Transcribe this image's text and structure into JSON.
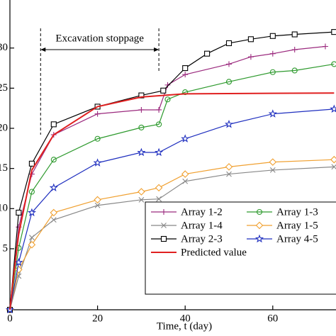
{
  "chart_data": {
    "type": "line",
    "annotation": "Excavation stoppage",
    "stoppage_days": [
      7,
      34
    ],
    "xlabel": "Time, t (day)",
    "xlim": [
      0,
      74.4
    ],
    "xticks": [
      0,
      20,
      40,
      60
    ],
    "ylim": [
      -2.6,
      35.1
    ],
    "yticks": [
      5,
      10,
      15,
      20,
      25,
      30
    ],
    "legend": "lower right",
    "series": [
      {
        "name": "Array 1-2",
        "color": "#9b2a7e",
        "marker": "plus",
        "x": [
          0,
          2,
          5,
          10,
          20,
          30,
          34,
          36,
          40,
          50,
          55,
          60,
          65,
          72
        ],
        "values": [
          -2.6,
          7.7,
          14.3,
          19.2,
          21.8,
          22.3,
          22.3,
          25.4,
          26.7,
          28.0,
          28.9,
          29.3,
          29.8,
          30.2
        ]
      },
      {
        "name": "Array 1-3",
        "color": "#2e9a2e",
        "marker": "circle",
        "x": [
          0,
          2,
          5,
          10,
          20,
          30,
          34,
          36,
          40,
          50,
          60,
          65,
          74
        ],
        "values": [
          -2.6,
          5.1,
          12.1,
          16.1,
          18.7,
          20.1,
          20.5,
          23.6,
          24.5,
          25.8,
          27.0,
          27.2,
          28.0
        ]
      },
      {
        "name": "Array 1-4",
        "color": "#888888",
        "marker": "x",
        "x": [
          0,
          2,
          5,
          10,
          20,
          30,
          34,
          40,
          50,
          60,
          74
        ],
        "values": [
          -2.6,
          1.6,
          6.4,
          8.6,
          10.4,
          11.1,
          11.2,
          13.4,
          14.3,
          14.8,
          15.2
        ]
      },
      {
        "name": "Array 1-5",
        "color": "#f0a030",
        "marker": "diamond",
        "x": [
          0,
          2,
          5,
          10,
          20,
          30,
          34,
          40,
          50,
          60,
          74
        ],
        "values": [
          -2.6,
          2.4,
          5.5,
          9.5,
          11.1,
          12.1,
          12.6,
          14.3,
          15.2,
          15.8,
          16.1
        ]
      },
      {
        "name": "Array 2-3",
        "color": "#000000",
        "marker": "square",
        "x": [
          0,
          2,
          5,
          10,
          20,
          30,
          35,
          40,
          45,
          50,
          55,
          60,
          65,
          74
        ],
        "values": [
          -2.6,
          9.5,
          15.6,
          20.5,
          22.7,
          24.1,
          24.7,
          27.5,
          29.3,
          30.6,
          31.1,
          31.5,
          31.7,
          32.0
        ]
      },
      {
        "name": "Array 4-5",
        "color": "#1f2fbf",
        "marker": "star",
        "x": [
          0,
          2,
          5,
          10,
          20,
          30,
          34,
          40,
          50,
          60,
          74
        ],
        "values": [
          -2.6,
          3.3,
          9.5,
          12.6,
          15.7,
          17.0,
          17.0,
          18.7,
          20.5,
          21.8,
          22.4
        ]
      },
      {
        "name": "Predicted value",
        "color": "#e02020",
        "marker": "none",
        "x": [
          0,
          1,
          2,
          5,
          10,
          20,
          30,
          40,
          74
        ],
        "values": [
          -2.6,
          2.4,
          6.8,
          14.8,
          19.2,
          22.7,
          23.9,
          24.3,
          24.4
        ]
      }
    ]
  }
}
